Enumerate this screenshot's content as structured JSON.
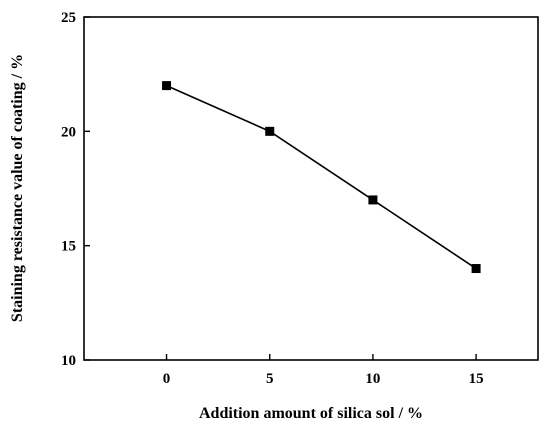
{
  "chart_data": {
    "type": "line",
    "title": "",
    "xlabel": "Addition amount of silica sol / %",
    "ylabel": "Staining resistance value of coating / %",
    "x": [
      0,
      5,
      10,
      15
    ],
    "series": [
      {
        "values": [
          22,
          20,
          17,
          14
        ]
      }
    ],
    "xlim": [
      -4,
      18
    ],
    "ylim": [
      10,
      25
    ],
    "xticks": [
      0,
      5,
      10,
      15
    ],
    "yticks": [
      10,
      15,
      20,
      25
    ],
    "xtick_labels": [
      "0",
      "5",
      "10",
      "15"
    ],
    "ytick_labels": [
      "10",
      "15",
      "20",
      "25"
    ],
    "marker": "square",
    "line_color": "#000000",
    "grid": false,
    "legend": "none"
  }
}
